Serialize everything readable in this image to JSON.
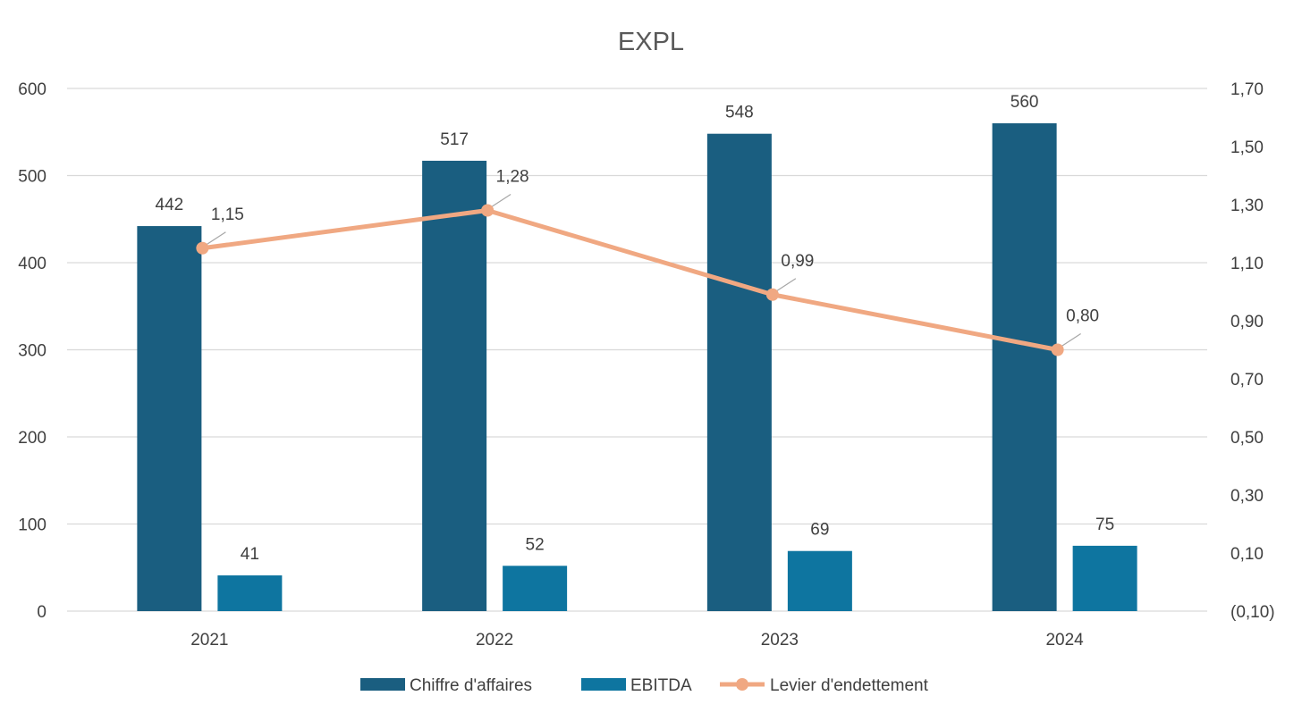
{
  "chart_data": {
    "type": "bar",
    "title": "EXPL",
    "categories": [
      "2021",
      "2022",
      "2023",
      "2024"
    ],
    "series": [
      {
        "name": "Chiffre d'affaires",
        "type": "bar",
        "axis": "left",
        "color": "#1A5E80",
        "values": [
          442,
          517,
          548,
          560
        ],
        "labels": [
          "442",
          "517",
          "548",
          "560"
        ]
      },
      {
        "name": "EBITDA",
        "type": "bar",
        "axis": "left",
        "color": "#0E75A0",
        "values": [
          41,
          52,
          69,
          75
        ],
        "labels": [
          "41",
          "52",
          "69",
          "75"
        ]
      },
      {
        "name": "Levier d'endettement",
        "type": "line",
        "axis": "right",
        "color": "#F0A882",
        "values": [
          1.15,
          1.28,
          0.99,
          0.8
        ],
        "labels": [
          "1,15",
          "1,28",
          "0,99",
          "0,80"
        ]
      }
    ],
    "y_left": {
      "min": 0,
      "max": 600,
      "ticks": [
        "0",
        "100",
        "200",
        "300",
        "400",
        "500",
        "600"
      ]
    },
    "y_right": {
      "min": -0.1,
      "max": 1.7,
      "ticks": [
        "(0,10)",
        "0,10",
        "0,30",
        "0,50",
        "0,70",
        "0,90",
        "1,10",
        "1,30",
        "1,50",
        "1,70"
      ]
    },
    "grid": true,
    "legend": "bottom",
    "gridline_color": "#D9D9D9",
    "label_leader_color": "#A6A6A6"
  }
}
